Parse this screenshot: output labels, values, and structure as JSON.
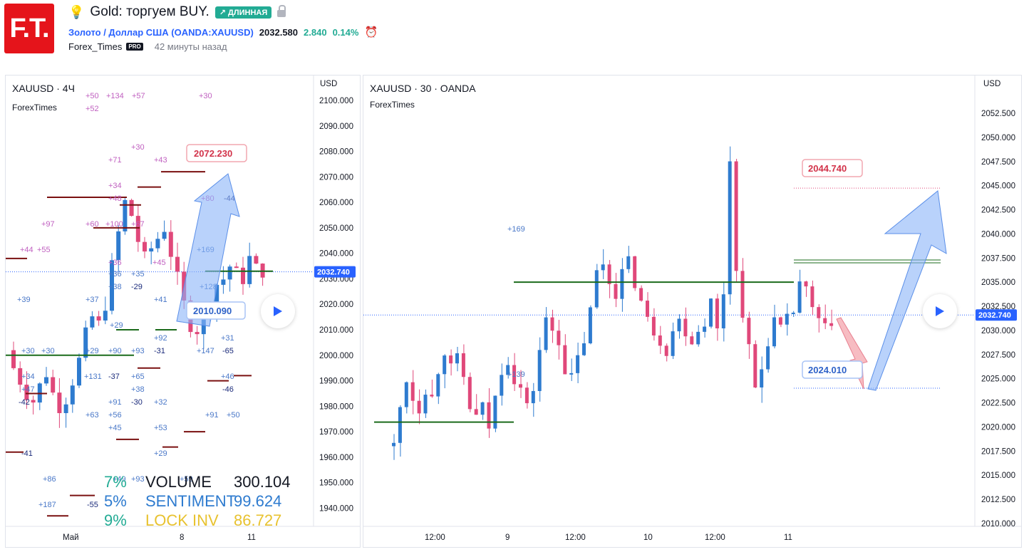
{
  "header": {
    "logo_text": "F.T.",
    "idea_title": "Gold: торгуем BUY.",
    "direction_badge": "↗ ДЛИННАЯ",
    "symbol_label": "Золото / Доллар США",
    "symbol_code": "(OANDA:XAUUSD)",
    "price": "2032.580",
    "change": "2.840",
    "change_pct": "0.14%",
    "author": "Forex_Times",
    "pro_badge": "PRO",
    "published": "42 минуты назад"
  },
  "left_chart": {
    "title": "XAUUSD · 4Ч",
    "subtitle": "ForexTimes",
    "currency": "USD",
    "price_ticks": [
      "2100.000",
      "2090.000",
      "2080.000",
      "2070.000",
      "2060.000",
      "2050.000",
      "2040.000",
      "2030.000",
      "2020.000",
      "2010.000",
      "2000.000",
      "1990.000",
      "1980.000",
      "1970.000",
      "1960.000",
      "1950.000",
      "1940.000"
    ],
    "last_price": "2032.740",
    "time_ticks": [
      "Май",
      "8",
      "11"
    ],
    "label_high": "2072.230",
    "label_low": "2010.090",
    "stats": [
      {
        "pct": "7%",
        "name": "VOLUME",
        "value": "300.104",
        "color": "#131722"
      },
      {
        "pct": "5%",
        "name": "SENTIMENT",
        "value": "99.624",
        "color": "#2e7bcf"
      },
      {
        "pct": "9%",
        "name": "LOCK INV",
        "value": "86.727",
        "color": "#e8c22f"
      }
    ],
    "pct_color": "#22ab94",
    "annotations": [
      "+50",
      "+134",
      "+57",
      "+30",
      "+52",
      "+30",
      "+71",
      "+43",
      "+34",
      "+48",
      "+80",
      "-44",
      "+97",
      "+60",
      "+100",
      "+67",
      "+44",
      "+55",
      "+36",
      "+45",
      "+169",
      "+36",
      "+35",
      "+38",
      "-29",
      "+41",
      "+128",
      "+39",
      "+37",
      "+29",
      "+92",
      "+31",
      "+30",
      "+30",
      "+29",
      "+90",
      "+93",
      "-31",
      "+147",
      "-65",
      "+34",
      "+131",
      "-37",
      "+65",
      "+46",
      "+47",
      "+38",
      "-46",
      "-42",
      "+91",
      "-30",
      "+32",
      "+63",
      "+56",
      "+91",
      "+50",
      "+45",
      "+53",
      "-41",
      "+29",
      "+86",
      "+49",
      "+93",
      "+59",
      "+187",
      "-55"
    ]
  },
  "right_chart": {
    "title": "XAUUSD · 30 · OANDA",
    "subtitle": "ForexTimes",
    "currency": "USD",
    "price_ticks": [
      "2052.500",
      "2050.000",
      "2047.500",
      "2045.000",
      "2042.500",
      "2040.000",
      "2037.500",
      "2035.000",
      "2032.500",
      "2030.000",
      "2027.500",
      "2025.000",
      "2022.500",
      "2020.000",
      "2017.500",
      "2015.000",
      "2012.500",
      "2010.000"
    ],
    "last_price": "2032.740",
    "time_ticks": [
      "12:00",
      "9",
      "12:00",
      "10",
      "12:00",
      "11"
    ],
    "label_high": "2044.740",
    "label_low": "2024.010",
    "annotations": [
      "+169",
      "+139"
    ]
  },
  "colors": {
    "up": "#2e7bcf",
    "down": "#e0487a",
    "green_level": "#1b6b1b",
    "maroon_level": "#7a1010",
    "last_price_bg": "#2962ff",
    "arrow_blue": "#8ab4f8",
    "arrow_red": "#f4a0a8"
  }
}
